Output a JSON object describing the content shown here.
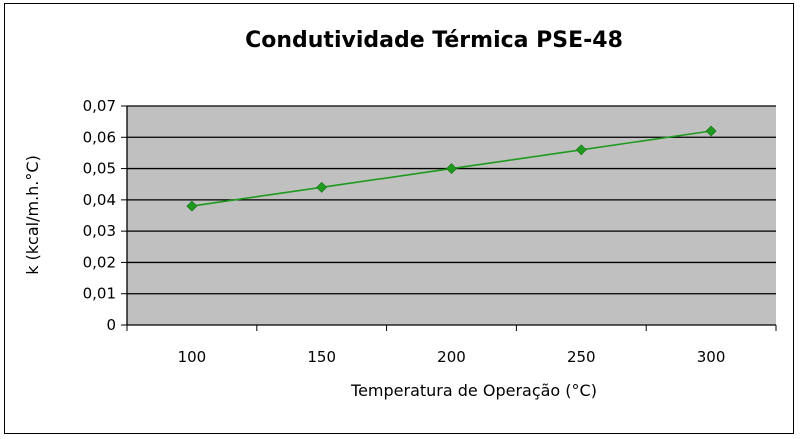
{
  "chart_data": {
    "type": "line",
    "title": "Condutividade Térmica PSE-48",
    "xlabel": "Temperatura de Operação (°C)",
    "ylabel": "k (kcal/m.h.°C)",
    "x": [
      100,
      150,
      200,
      250,
      300
    ],
    "series": [
      {
        "values": [
          0.038,
          0.044,
          0.05,
          0.056,
          0.062
        ]
      }
    ],
    "x_tick_labels": [
      "100",
      "150",
      "200",
      "250",
      "300"
    ],
    "y_tick_labels": [
      "0",
      "0,01",
      "0,02",
      "0,03",
      "0,04",
      "0,05",
      "0,06",
      "0,07"
    ],
    "ylim": [
      0,
      0.07
    ],
    "grid": "horizontal",
    "legend": "none",
    "colors": {
      "plot_background": "#c0c0c0",
      "series": "#1e9a1e",
      "gridline": "#000000"
    }
  }
}
